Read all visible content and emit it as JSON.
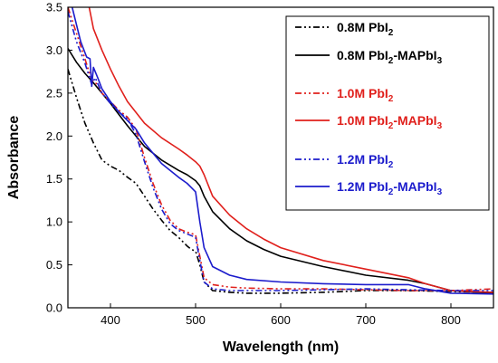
{
  "chart_data": {
    "type": "line",
    "title": "",
    "xlabel": "Wavelength (nm)",
    "ylabel": "Absorbance",
    "xlim": [
      350,
      850
    ],
    "ylim": [
      0.0,
      3.5
    ],
    "xticks": [
      400,
      500,
      600,
      700,
      800
    ],
    "yticks": [
      0.0,
      0.5,
      1.0,
      1.5,
      2.0,
      2.5,
      3.0,
      3.5
    ],
    "xtick_labels": [
      "400",
      "500",
      "600",
      "700",
      "800"
    ],
    "ytick_labels": [
      "0.0",
      "0.5",
      "1.0",
      "1.5",
      "2.0",
      "2.5",
      "3.0",
      "3.5"
    ],
    "grid": false,
    "legend_position": "top-right",
    "series": [
      {
        "name": "0.8M PbI2",
        "name_base": "0.8M PbI",
        "name_sub": "2",
        "name_tail": "",
        "name_sub2": "",
        "color": "#000000",
        "dash": "dashdotdot",
        "x": [
          350,
          360,
          370,
          380,
          390,
          400,
          410,
          420,
          430,
          440,
          450,
          460,
          470,
          480,
          490,
          495,
          500,
          505,
          510,
          520,
          540,
          560,
          600,
          650,
          700,
          750,
          800,
          850
        ],
        "y": [
          2.78,
          2.45,
          2.15,
          1.92,
          1.72,
          1.65,
          1.6,
          1.52,
          1.45,
          1.3,
          1.15,
          1.02,
          0.9,
          0.82,
          0.72,
          0.68,
          0.66,
          0.5,
          0.3,
          0.2,
          0.18,
          0.17,
          0.17,
          0.18,
          0.2,
          0.2,
          0.19,
          0.18
        ]
      },
      {
        "name": "0.8M PbI2-MAPbI3",
        "name_base": "0.8M PbI",
        "name_sub": "2",
        "name_tail": "-MAPbI",
        "name_sub2": "3",
        "color": "#000000",
        "dash": "solid",
        "x": [
          350,
          360,
          370,
          380,
          390,
          400,
          410,
          420,
          440,
          460,
          480,
          490,
          500,
          505,
          510,
          520,
          540,
          560,
          580,
          600,
          650,
          700,
          750,
          770,
          800,
          850
        ],
        "y": [
          3.02,
          2.86,
          2.73,
          2.62,
          2.5,
          2.38,
          2.25,
          2.12,
          1.88,
          1.72,
          1.6,
          1.55,
          1.48,
          1.42,
          1.3,
          1.12,
          0.92,
          0.78,
          0.68,
          0.6,
          0.48,
          0.38,
          0.32,
          0.28,
          0.2,
          0.17
        ]
      },
      {
        "name": "1.0M PbI2",
        "name_base": "1.0M PbI",
        "name_sub": "2",
        "name_tail": "",
        "name_sub2": "",
        "color": "#e0201c",
        "dash": "dashdotdot",
        "x": [
          350,
          360,
          370,
          378,
          385,
          390,
          400,
          410,
          420,
          430,
          440,
          450,
          460,
          470,
          480,
          490,
          500,
          505,
          510,
          520,
          540,
          560,
          600,
          650,
          700,
          750,
          800,
          850
        ],
        "y": [
          3.5,
          3.2,
          2.9,
          2.65,
          2.6,
          2.5,
          2.4,
          2.3,
          2.22,
          2.08,
          1.75,
          1.45,
          1.2,
          1.02,
          0.92,
          0.88,
          0.85,
          0.6,
          0.35,
          0.27,
          0.24,
          0.23,
          0.22,
          0.22,
          0.21,
          0.2,
          0.2,
          0.22
        ]
      },
      {
        "name": "1.0M PbI2-MAPbI3",
        "name_base": "1.0M PbI",
        "name_sub": "2",
        "name_tail": "-MAPbI",
        "name_sub2": "3",
        "color": "#e0201c",
        "dash": "solid",
        "x": [
          375,
          380,
          390,
          400,
          410,
          420,
          440,
          460,
          480,
          490,
          500,
          505,
          510,
          520,
          540,
          560,
          580,
          600,
          650,
          700,
          750,
          770,
          800,
          850
        ],
        "y": [
          3.5,
          3.25,
          3.0,
          2.78,
          2.58,
          2.4,
          2.15,
          1.98,
          1.85,
          1.78,
          1.7,
          1.65,
          1.55,
          1.3,
          1.08,
          0.92,
          0.8,
          0.7,
          0.55,
          0.45,
          0.35,
          0.28,
          0.2,
          0.18
        ]
      },
      {
        "name": "1.2M PbI2",
        "name_base": "1.2M PbI",
        "name_sub": "2",
        "name_tail": "",
        "name_sub2": "",
        "color": "#1c1ccc",
        "dash": "dashdotdot",
        "x": [
          350,
          360,
          370,
          378,
          382,
          390,
          400,
          410,
          420,
          430,
          440,
          450,
          460,
          470,
          480,
          490,
          500,
          505,
          510,
          520,
          540,
          560,
          600,
          650,
          700,
          750,
          800,
          850
        ],
        "y": [
          3.45,
          3.1,
          2.85,
          2.6,
          2.68,
          2.5,
          2.38,
          2.28,
          2.2,
          2.02,
          1.7,
          1.4,
          1.15,
          0.98,
          0.9,
          0.86,
          0.82,
          0.55,
          0.3,
          0.22,
          0.2,
          0.2,
          0.2,
          0.21,
          0.22,
          0.21,
          0.2,
          0.2
        ]
      },
      {
        "name": "1.2M PbI2-MAPbI3",
        "name_base": "1.2M PbI",
        "name_sub": "2",
        "name_tail": "-MAPbI",
        "name_sub2": "3",
        "color": "#1c1ccc",
        "dash": "solid",
        "x": [
          355,
          365,
          372,
          376,
          378,
          380,
          385,
          390,
          400,
          410,
          420,
          430,
          440,
          460,
          480,
          490,
          495,
          500,
          505,
          510,
          520,
          540,
          560,
          600,
          650,
          700,
          750,
          770,
          800,
          850
        ],
        "y": [
          3.5,
          3.1,
          2.92,
          2.9,
          2.58,
          2.8,
          2.68,
          2.55,
          2.4,
          2.28,
          2.18,
          2.08,
          1.92,
          1.68,
          1.52,
          1.45,
          1.4,
          1.35,
          1.0,
          0.7,
          0.48,
          0.38,
          0.33,
          0.3,
          0.28,
          0.27,
          0.27,
          0.22,
          0.17,
          0.16
        ]
      }
    ]
  }
}
